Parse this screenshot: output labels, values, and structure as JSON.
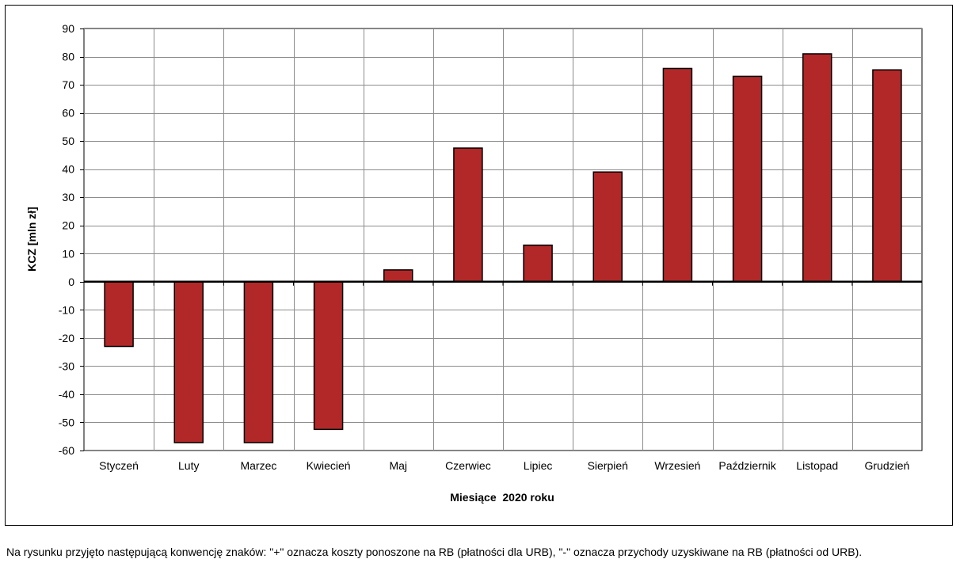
{
  "chart_data": {
    "type": "bar",
    "categories": [
      "Styczeń",
      "Luty",
      "Marzec",
      "Kwiecień",
      "Maj",
      "Czerwiec",
      "Lipiec",
      "Sierpień",
      "Wrzesień",
      "Październik",
      "Listopad",
      "Grudzień"
    ],
    "values": [
      -23,
      -57.2,
      -57.2,
      -52.5,
      4.2,
      47.5,
      13,
      39,
      75.8,
      73,
      81,
      75.3
    ],
    "xlabel": "Miesiące  2020 roku",
    "ylabel": "KCZ [mln zł]",
    "ylim": [
      -60,
      90
    ],
    "yticks": [
      90,
      80,
      70,
      60,
      50,
      40,
      30,
      20,
      10,
      0,
      -10,
      -20,
      -30,
      -40,
      -50,
      -60
    ],
    "grid": true,
    "bar_color": "#b22828"
  },
  "footnote": "Na rysunku przyjęto następującą konwencję znaków: \"+\" oznacza koszty ponoszone na RB (płatności dla URB), \"-\" oznacza przychody uzyskiwane na RB (płatności od URB)."
}
